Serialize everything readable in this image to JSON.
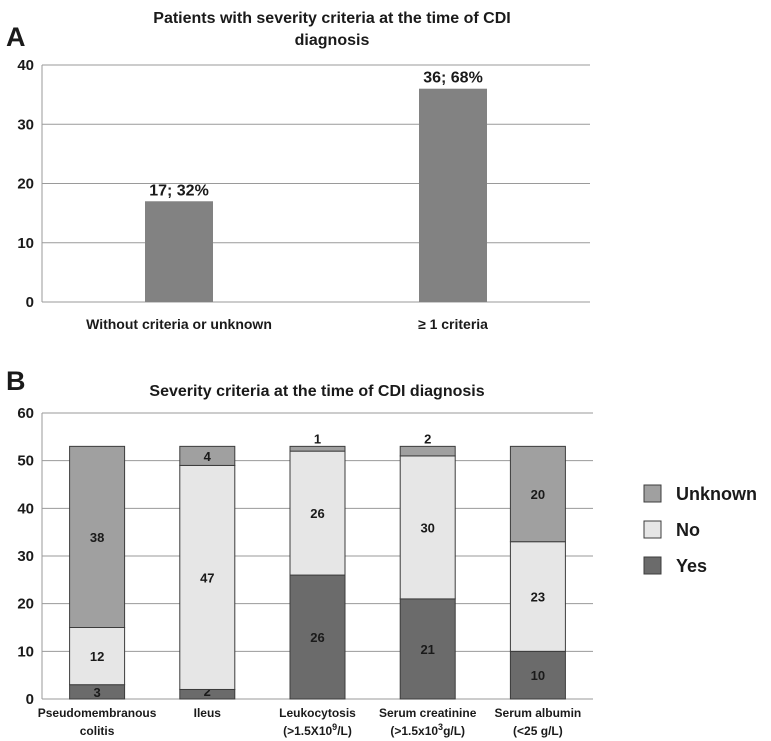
{
  "chart_data": [
    {
      "panel": "A",
      "type": "bar",
      "title_lines": [
        "Patients with severity criteria at the time of CDI",
        "diagnosis"
      ],
      "categories": [
        "Without criteria or unknown",
        "≥ 1 criteria"
      ],
      "values": [
        17,
        36
      ],
      "data_labels": [
        "17; 32%",
        "36; 68%"
      ],
      "yticks": [
        "0",
        "10",
        "20",
        "30",
        "40"
      ],
      "ylim": [
        0,
        40
      ],
      "grid": true,
      "colors": {
        "bar": "#828282"
      }
    },
    {
      "panel": "B",
      "type": "bar",
      "stacked": true,
      "title": "Severity criteria at the time of CDI diagnosis",
      "categories": [
        {
          "line1": "Pseudomembranous",
          "line2": "colitis"
        },
        {
          "line1": "Ileus",
          "line2": ""
        },
        {
          "line1": "Leukocytosis",
          "line2": "(>1.5X10",
          "sup": "9",
          "tail": "/L)"
        },
        {
          "line1": "Serum creatinine",
          "line2": "(>1.5x10",
          "sup": "3",
          "tail": "g/L)"
        },
        {
          "line1": "Serum albumin",
          "line2": "(<25 g/L)"
        }
      ],
      "series": [
        {
          "name": "Yes",
          "color": "#6b6b6b",
          "values": [
            3,
            2,
            26,
            21,
            10
          ]
        },
        {
          "name": "No",
          "color": "#e6e6e6",
          "values": [
            12,
            47,
            26,
            30,
            23
          ]
        },
        {
          "name": "Unknown",
          "color": "#a0a0a0",
          "values": [
            38,
            4,
            1,
            2,
            20
          ]
        }
      ],
      "legend_order": [
        "Unknown",
        "No",
        "Yes"
      ],
      "legend_position": "right",
      "yticks": [
        "0",
        "10",
        "20",
        "30",
        "40",
        "50",
        "60"
      ],
      "ylim": [
        0,
        60
      ],
      "grid": true
    }
  ]
}
